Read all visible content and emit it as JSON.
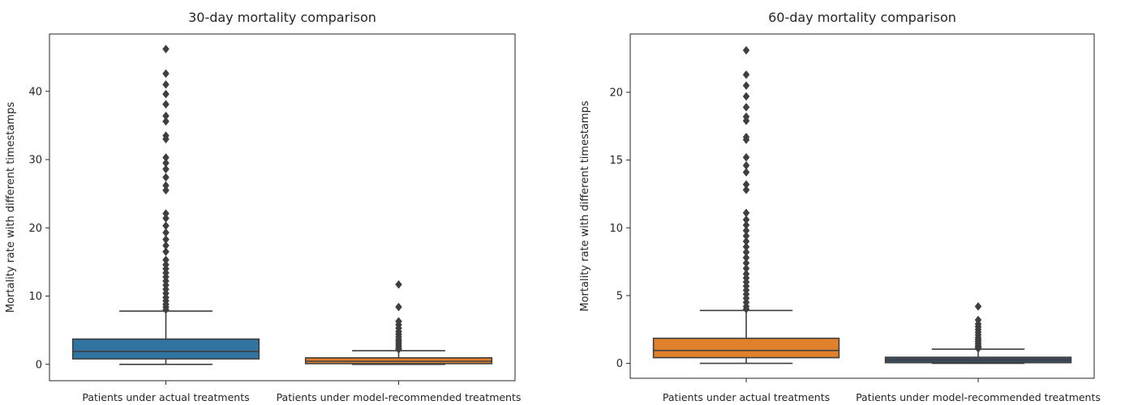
{
  "chart_data": [
    {
      "type": "box",
      "title": "30-day mortality comparison",
      "ylabel": "Mortality rate with different timestamps",
      "ylim": [
        -2.4,
        48.4
      ],
      "yticks": [
        0,
        10,
        20,
        30,
        40
      ],
      "grid": false,
      "categories": [
        "Patients under actual treatments",
        "Patients under model-recommended treatments"
      ],
      "line_color": "#3f3f3f",
      "boxes": [
        {
          "color": "#3274a1",
          "whisker_low": 0,
          "q1": 0.8,
          "median": 1.9,
          "q3": 3.7,
          "whisker_high": 7.8,
          "outliers": [
            46.2,
            42.6,
            41.0,
            39.6,
            38.1,
            36.4,
            35.6,
            33.5,
            33.0,
            30.3,
            29.5,
            28.6,
            27.4,
            26.2,
            25.5,
            22.1,
            21.4,
            20.3,
            19.3,
            18.3,
            17.4,
            16.5,
            15.3,
            14.6,
            14.0,
            13.4,
            12.8,
            12.2,
            11.6,
            11.0,
            10.4,
            9.8,
            9.3,
            8.8,
            8.4,
            8.0
          ]
        },
        {
          "color": "#e1812c",
          "whisker_low": 0,
          "q1": 0.1,
          "median": 0.45,
          "q3": 0.95,
          "whisker_high": 2.0,
          "outliers": [
            11.7,
            8.4,
            6.3,
            5.8,
            5.3,
            4.8,
            4.4,
            4.0,
            3.6,
            3.3,
            3.0,
            2.7,
            2.4,
            2.2
          ]
        }
      ]
    },
    {
      "type": "box",
      "title": "60-day mortality comparison",
      "ylabel": "Mortality rate with different timestamps",
      "ylim": [
        -1.1,
        24.3
      ],
      "yticks": [
        0,
        5,
        10,
        15,
        20
      ],
      "grid": false,
      "categories": [
        "Patients under actual treatments",
        "Patients under model-recommended treatments"
      ],
      "line_color": "#3f3f3f",
      "boxes": [
        {
          "color": "#e1812c",
          "whisker_low": 0,
          "q1": 0.42,
          "median": 0.95,
          "q3": 1.85,
          "whisker_high": 3.9,
          "outliers": [
            23.1,
            21.3,
            20.5,
            19.7,
            18.9,
            18.2,
            17.9,
            16.7,
            16.5,
            15.2,
            14.6,
            14.1,
            13.2,
            12.8,
            11.1,
            10.6,
            10.2,
            9.8,
            9.4,
            9.0,
            8.6,
            8.2,
            7.8,
            7.4,
            7.0,
            6.6,
            6.3,
            6.0,
            5.7,
            5.4,
            5.1,
            4.8,
            4.5,
            4.2,
            4.0
          ]
        },
        {
          "color": "#3b4e63",
          "whisker_low": 0,
          "q1": 0.05,
          "median": 0.25,
          "q3": 0.45,
          "whisker_high": 1.05,
          "outliers": [
            4.2,
            3.2,
            2.9,
            2.7,
            2.5,
            2.3,
            2.1,
            1.9,
            1.75,
            1.6,
            1.45,
            1.3,
            1.2,
            1.1
          ]
        }
      ]
    }
  ]
}
